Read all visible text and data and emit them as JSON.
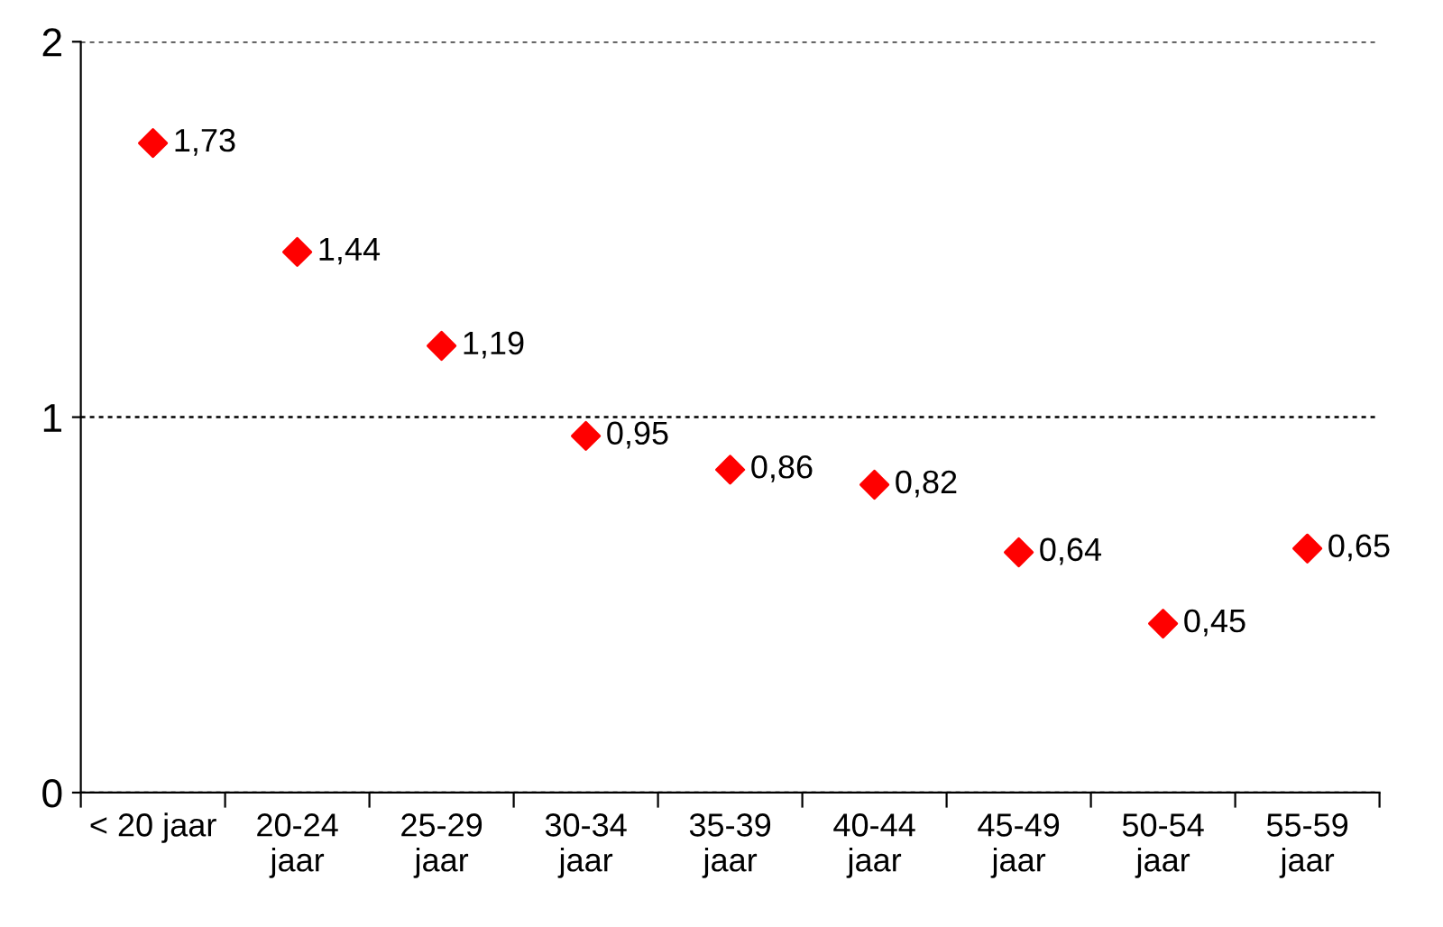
{
  "chart_data": {
    "type": "scatter",
    "categories": [
      "< 20 jaar",
      "20-24\njaar",
      "25-29\njaar",
      "30-34\njaar",
      "35-39\njaar",
      "40-44\njaar",
      "45-49\njaar",
      "50-54\njaar",
      "55-59\njaar"
    ],
    "series": [
      {
        "color": "#ff0000",
        "values": [
          1.73,
          1.44,
          1.19,
          0.95,
          0.86,
          0.82,
          0.64,
          0.45,
          0.65
        ],
        "value_labels": [
          "1,73",
          "1,44",
          "1,19",
          "0,95",
          "0,86",
          "0,82",
          "0,64",
          "0,45",
          "0,65"
        ]
      }
    ],
    "ylim": [
      0,
      2
    ],
    "yticks": [
      0,
      1,
      2
    ],
    "grid": "y",
    "marker": "diamond",
    "legend": false
  }
}
